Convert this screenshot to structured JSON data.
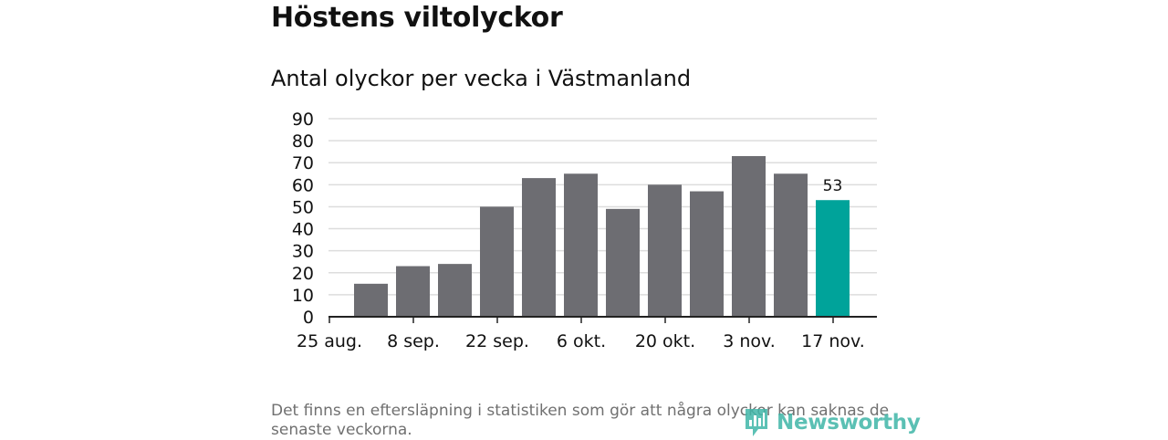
{
  "header": {
    "title": "Höstens viltolyckor",
    "subtitle": "Antal olyckor per vecka i Västmanland"
  },
  "footer": {
    "note": "Det finns en eftersläpning i statistiken som gör att några olyckor kan saknas de senaste veckorna.",
    "brand": "Newsworthy"
  },
  "colors": {
    "bar": "#6d6d72",
    "highlight": "#00a39a",
    "grid": "#dddddd",
    "axis": "#222222",
    "brand": "#3fb6a8"
  },
  "chart_data": {
    "type": "bar",
    "title": "Antal olyckor per vecka i Västmanland",
    "xlabel": "",
    "ylabel": "",
    "ylim": [
      0,
      90
    ],
    "yticks": [
      0,
      10,
      20,
      30,
      40,
      50,
      60,
      70,
      80,
      90
    ],
    "xtick_labels": [
      "25 aug.",
      "8 sep.",
      "22 sep.",
      "6 okt.",
      "20 okt.",
      "3 nov.",
      "17 nov."
    ],
    "values": [
      15,
      23,
      24,
      50,
      63,
      65,
      49,
      60,
      57,
      73,
      65,
      53
    ],
    "highlight_index": 11,
    "data_labels": [
      {
        "index": 11,
        "text": "53"
      }
    ],
    "grid": true,
    "legend": "none"
  }
}
